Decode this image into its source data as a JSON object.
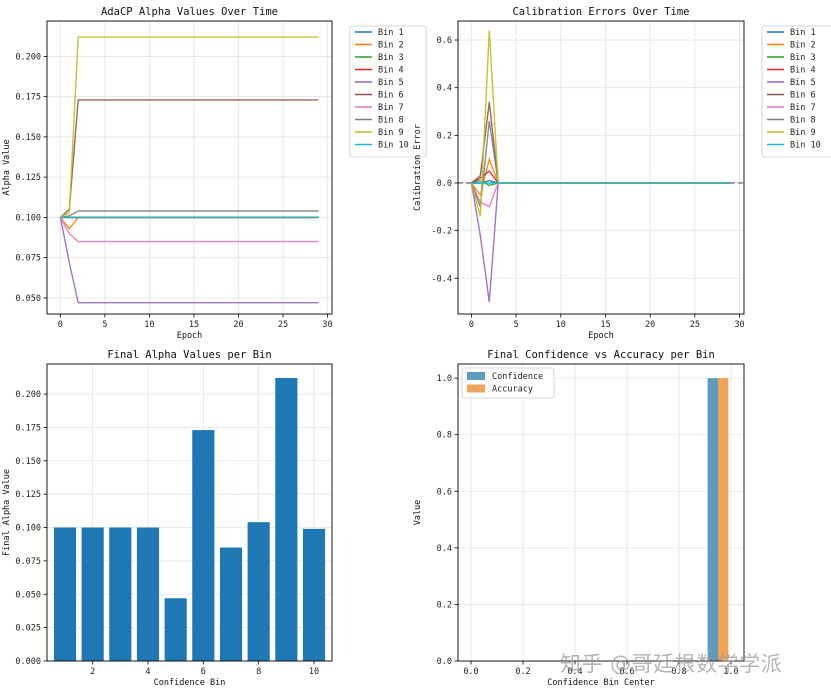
{
  "watermark": "知乎 @哥廷根数学学派",
  "chart_data": [
    {
      "id": "alpha",
      "type": "line",
      "title": "AdaCP Alpha Values Over Time",
      "xlabel": "Epoch",
      "ylabel": "Alpha Value",
      "xlim": [
        -1.5,
        30.5
      ],
      "ylim": [
        0.04,
        0.222
      ],
      "xticks": [
        0,
        5,
        10,
        15,
        20,
        25,
        30
      ],
      "yticks": [
        0.05,
        0.075,
        0.1,
        0.125,
        0.15,
        0.175,
        0.2
      ],
      "ytick_labels": [
        "0.050",
        "0.075",
        "0.100",
        "0.125",
        "0.150",
        "0.175",
        "0.200"
      ],
      "grid": true,
      "legend_position": "outside-right",
      "epochs_last": 29,
      "series": [
        {
          "name": "Bin 1",
          "color": "#1f77b4",
          "points": [
            [
              0,
              0.1
            ],
            [
              2,
              0.1
            ],
            [
              29,
              0.1
            ]
          ]
        },
        {
          "name": "Bin 2",
          "color": "#ff7f0e",
          "points": [
            [
              0,
              0.1
            ],
            [
              1,
              0.093
            ],
            [
              2,
              0.1
            ],
            [
              29,
              0.1
            ]
          ]
        },
        {
          "name": "Bin 3",
          "color": "#2ca02c",
          "points": [
            [
              0,
              0.1
            ],
            [
              2,
              0.1
            ],
            [
              29,
              0.1
            ]
          ]
        },
        {
          "name": "Bin 4",
          "color": "#d62728",
          "points": [
            [
              0,
              0.1
            ],
            [
              1,
              0.1
            ],
            [
              2,
              0.1
            ],
            [
              29,
              0.1
            ]
          ]
        },
        {
          "name": "Bin 5",
          "color": "#9467bd",
          "points": [
            [
              0,
              0.1
            ],
            [
              1,
              0.072
            ],
            [
              2,
              0.047
            ],
            [
              29,
              0.047
            ]
          ]
        },
        {
          "name": "Bin 6",
          "color": "#8c564b",
          "points": [
            [
              0,
              0.1
            ],
            [
              1,
              0.105
            ],
            [
              2,
              0.173
            ],
            [
              29,
              0.173
            ]
          ]
        },
        {
          "name": "Bin 7",
          "color": "#e377c2",
          "points": [
            [
              0,
              0.1
            ],
            [
              1,
              0.09
            ],
            [
              2,
              0.085
            ],
            [
              29,
              0.085
            ]
          ]
        },
        {
          "name": "Bin 8",
          "color": "#7f7f7f",
          "points": [
            [
              0,
              0.1
            ],
            [
              1,
              0.101
            ],
            [
              2,
              0.104
            ],
            [
              29,
              0.104
            ]
          ]
        },
        {
          "name": "Bin 9",
          "color": "#bcbd22",
          "points": [
            [
              0,
              0.1
            ],
            [
              1,
              0.103
            ],
            [
              2,
              0.212
            ],
            [
              29,
              0.212
            ]
          ]
        },
        {
          "name": "Bin 10",
          "color": "#17becf",
          "points": [
            [
              0,
              0.1
            ],
            [
              1,
              0.1
            ],
            [
              2,
              0.1
            ],
            [
              29,
              0.1
            ]
          ]
        }
      ]
    },
    {
      "id": "calib",
      "type": "line",
      "title": "Calibration Errors Over Time",
      "xlabel": "Epoch",
      "ylabel": "Calibration Error",
      "xlim": [
        -1.5,
        30.5
      ],
      "ylim": [
        -0.55,
        0.68
      ],
      "xticks": [
        0,
        5,
        10,
        15,
        20,
        25,
        30
      ],
      "yticks": [
        -0.4,
        -0.2,
        0.0,
        0.2,
        0.4,
        0.6
      ],
      "ytick_labels": [
        "-0.4",
        "-0.2",
        "0.0",
        "0.2",
        "0.4",
        "0.6"
      ],
      "grid": true,
      "zero_line": "dashed",
      "legend_position": "outside-right",
      "series": [
        {
          "name": "Bin 1",
          "color": "#1f77b4",
          "points": [
            [
              0,
              0
            ],
            [
              1,
              0
            ],
            [
              2,
              0.01
            ],
            [
              3,
              0
            ],
            [
              29,
              0
            ]
          ]
        },
        {
          "name": "Bin 2",
          "color": "#ff7f0e",
          "points": [
            [
              0,
              0
            ],
            [
              1,
              -0.05
            ],
            [
              2,
              0.1
            ],
            [
              3,
              0
            ],
            [
              29,
              0
            ]
          ]
        },
        {
          "name": "Bin 3",
          "color": "#2ca02c",
          "points": [
            [
              0,
              0
            ],
            [
              1,
              0.01
            ],
            [
              2,
              -0.01
            ],
            [
              3,
              0
            ],
            [
              29,
              0
            ]
          ]
        },
        {
          "name": "Bin 4",
          "color": "#d62728",
          "points": [
            [
              0,
              0
            ],
            [
              1,
              0.02
            ],
            [
              2,
              0.05
            ],
            [
              3,
              0
            ],
            [
              29,
              0
            ]
          ]
        },
        {
          "name": "Bin 5",
          "color": "#9467bd",
          "points": [
            [
              0,
              0
            ],
            [
              1,
              -0.22
            ],
            [
              2,
              -0.5
            ],
            [
              3,
              0
            ],
            [
              29,
              0
            ]
          ]
        },
        {
          "name": "Bin 6",
          "color": "#8c564b",
          "points": [
            [
              0,
              0
            ],
            [
              1,
              0.03
            ],
            [
              2,
              0.34
            ],
            [
              3,
              0
            ],
            [
              29,
              0
            ]
          ]
        },
        {
          "name": "Bin 7",
          "color": "#e377c2",
          "points": [
            [
              0,
              0
            ],
            [
              1,
              -0.08
            ],
            [
              2,
              -0.1
            ],
            [
              3,
              0
            ],
            [
              29,
              0
            ]
          ]
        },
        {
          "name": "Bin 8",
          "color": "#7f7f7f",
          "points": [
            [
              0,
              0
            ],
            [
              1,
              -0.1
            ],
            [
              2,
              0.26
            ],
            [
              3,
              0
            ],
            [
              29,
              0
            ]
          ]
        },
        {
          "name": "Bin 9",
          "color": "#bcbd22",
          "points": [
            [
              0,
              0
            ],
            [
              1,
              -0.14
            ],
            [
              2,
              0.64
            ],
            [
              3,
              0
            ],
            [
              29,
              0
            ]
          ]
        },
        {
          "name": "Bin 10",
          "color": "#17becf",
          "points": [
            [
              0,
              0
            ],
            [
              1,
              0
            ],
            [
              2,
              0
            ],
            [
              3,
              0
            ],
            [
              29,
              0
            ]
          ]
        }
      ]
    },
    {
      "id": "final",
      "type": "bar",
      "title": "Final Alpha Values per Bin",
      "xlabel": "Confidence Bin",
      "ylabel": "Final Alpha Value",
      "xlim": [
        0.35,
        10.65
      ],
      "ylim": [
        0,
        0.2225
      ],
      "xticks": [
        2,
        4,
        6,
        8,
        10
      ],
      "yticks": [
        0,
        0.025,
        0.05,
        0.075,
        0.1,
        0.125,
        0.15,
        0.175,
        0.2
      ],
      "ytick_labels": [
        "0.000",
        "0.025",
        "0.050",
        "0.075",
        "0.100",
        "0.125",
        "0.150",
        "0.175",
        "0.200"
      ],
      "grid": true,
      "bar_color": "#1f77b4",
      "categories": [
        1,
        2,
        3,
        4,
        5,
        6,
        7,
        8,
        9,
        10
      ],
      "values": [
        0.1,
        0.1,
        0.1,
        0.1,
        0.047,
        0.173,
        0.085,
        0.104,
        0.212,
        0.099
      ]
    },
    {
      "id": "confacc",
      "type": "bar",
      "title": "Final Confidence vs Accuracy per Bin",
      "xlabel": "Confidence Bin Center",
      "ylabel": "Value",
      "xlim": [
        -0.05,
        1.05
      ],
      "ylim": [
        0,
        1.05
      ],
      "xticks": [
        0.0,
        0.2,
        0.4,
        0.6,
        0.8,
        1.0
      ],
      "xtick_labels": [
        "0.0",
        "0.2",
        "0.4",
        "0.6",
        "0.8",
        "1.0"
      ],
      "yticks": [
        0,
        0.2,
        0.4,
        0.6,
        0.8,
        1.0
      ],
      "ytick_labels": [
        "0.0",
        "0.2",
        "0.4",
        "0.6",
        "0.8",
        "1.0"
      ],
      "grid": true,
      "legend_position": "top-left",
      "bar_width": 0.04,
      "series": [
        {
          "name": "Confidence",
          "color": "#5f9bbd",
          "x": [
            0.93
          ],
          "values": [
            1.0
          ]
        },
        {
          "name": "Accuracy",
          "color": "#f0a45a",
          "x": [
            0.97
          ],
          "values": [
            1.0
          ]
        }
      ]
    }
  ]
}
